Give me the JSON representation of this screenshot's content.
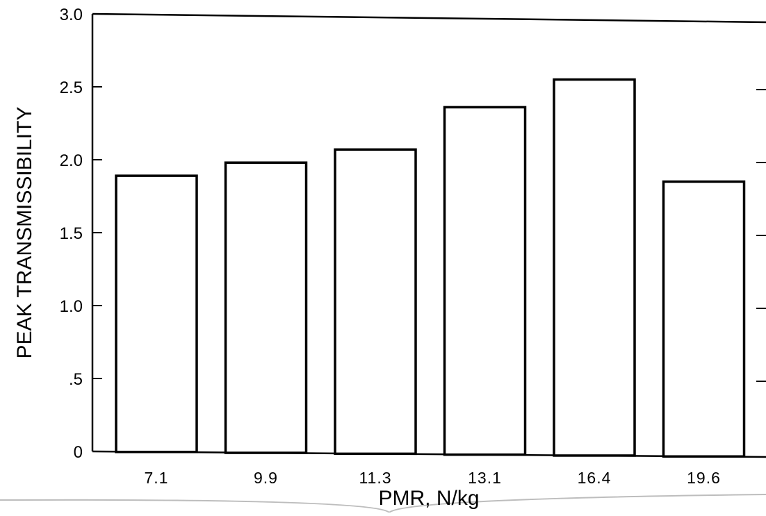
{
  "colors": {
    "ink": "#000000",
    "background": "#ffffff",
    "bar_fill": "#ffffff",
    "edge_shadow": "#bdbdbd"
  },
  "chart_data": {
    "type": "bar",
    "title": "",
    "xlabel": "PMR, N/kg",
    "ylabel": "PEAK TRANSMISSIBILITY",
    "categories": [
      "7.1",
      "9.9",
      "11.3",
      "13.1",
      "16.4",
      "19.6"
    ],
    "values": [
      1.89,
      1.98,
      2.07,
      2.36,
      2.55,
      1.85
    ],
    "ylim": [
      0,
      3.0
    ],
    "yticks": [
      0,
      0.5,
      1.0,
      1.5,
      2.0,
      2.5,
      3.0
    ],
    "ytick_labels": [
      "0",
      ".5",
      "1.0",
      "1.5",
      "2.0",
      "2.5",
      "3.0"
    ],
    "grid": false,
    "legend": "none"
  }
}
